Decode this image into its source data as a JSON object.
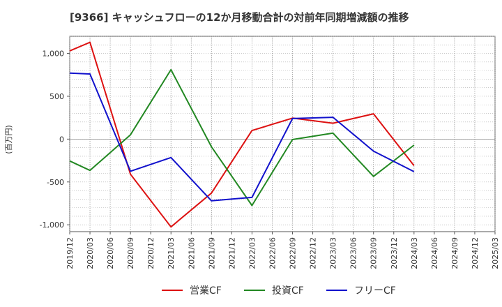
{
  "chart_data": {
    "type": "line",
    "title": "[9366]  キャッシュフローの12か月移動合計の対前年同期増減額の推移",
    "ylabel": "(百万円)",
    "xlabel": "",
    "ylim": [
      -1080,
      1200
    ],
    "yticks": [
      -1000,
      -500,
      0,
      500,
      1000
    ],
    "ytick_labels": [
      "-1,000",
      "-500",
      "0",
      "500",
      "1,000"
    ],
    "categories": [
      "2019/12",
      "2020/03",
      "2020/06",
      "2020/09",
      "2020/12",
      "2021/03",
      "2021/06",
      "2021/09",
      "2021/12",
      "2022/03",
      "2022/06",
      "2022/09",
      "2022/12",
      "2023/03",
      "2023/06",
      "2023/09",
      "2023/12",
      "2024/03",
      "2024/06",
      "2024/09",
      "2024/12",
      "2025/03"
    ],
    "grid": true,
    "legend_position": "bottom",
    "series": [
      {
        "name": "営業CF",
        "color": "#dd1111",
        "values": [
          1030,
          1130,
          null,
          -410,
          null,
          -1025,
          null,
          -630,
          null,
          100,
          null,
          245,
          null,
          185,
          null,
          295,
          null,
          -310,
          null,
          null,
          null,
          null
        ]
      },
      {
        "name": "投資CF",
        "color": "#228822",
        "values": [
          -255,
          -365,
          null,
          50,
          null,
          810,
          null,
          -90,
          null,
          -775,
          null,
          -5,
          null,
          70,
          null,
          -435,
          null,
          -70,
          null,
          null,
          null,
          null
        ]
      },
      {
        "name": "フリーCF",
        "color": "#1111cc",
        "values": [
          770,
          760,
          null,
          -375,
          null,
          -215,
          null,
          -720,
          null,
          -680,
          null,
          240,
          null,
          255,
          null,
          -140,
          null,
          -380,
          null,
          null,
          null,
          null
        ]
      }
    ]
  }
}
